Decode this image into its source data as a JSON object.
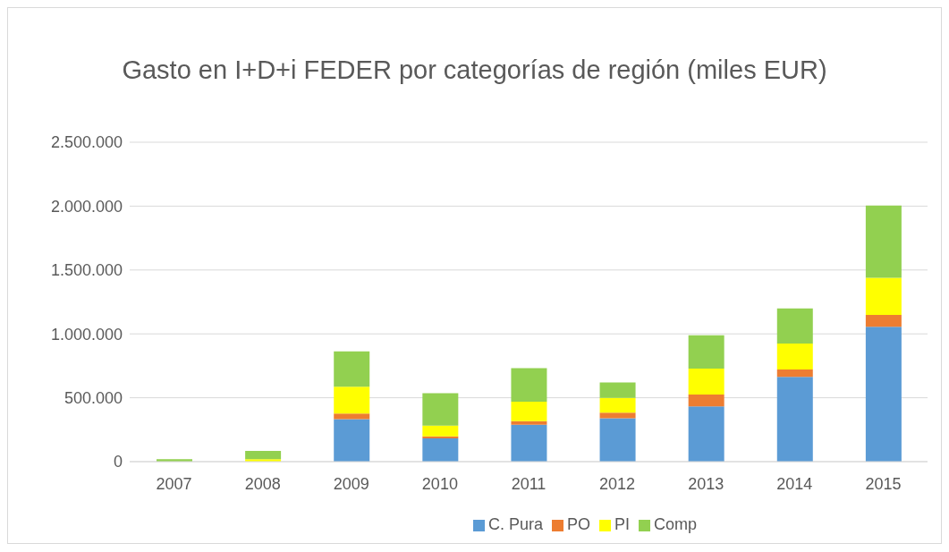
{
  "chart_data": {
    "type": "bar",
    "title": "Gasto en I+D+i FEDER por categorías de región (miles EUR)",
    "categories": [
      "2007",
      "2008",
      "2009",
      "2010",
      "2011",
      "2012",
      "2013",
      "2014",
      "2015"
    ],
    "stacked": true,
    "series": [
      {
        "name": "C. Pura",
        "color": "#5b9bd5",
        "values": [
          0,
          0,
          332000,
          182000,
          288000,
          340000,
          432000,
          664000,
          1055000
        ]
      },
      {
        "name": "PO",
        "color": "#ed7d31",
        "values": [
          0,
          0,
          44000,
          15000,
          29000,
          43000,
          94000,
          58000,
          94000
        ]
      },
      {
        "name": "PI",
        "color": "#ffff00",
        "values": [
          0,
          19000,
          211000,
          85000,
          153000,
          116000,
          203000,
          203000,
          290000
        ]
      },
      {
        "name": "Comp",
        "color": "#92d050",
        "values": [
          19000,
          65000,
          276000,
          254000,
          261000,
          121000,
          261000,
          275000,
          565000
        ]
      }
    ],
    "ylim": [
      0,
      2500000
    ],
    "yticks": [
      {
        "value": 0,
        "label": "0"
      },
      {
        "value": 500000,
        "label": "500.000"
      },
      {
        "value": 1000000,
        "label": "1.000.000"
      },
      {
        "value": 1500000,
        "label": "1.500.000"
      },
      {
        "value": 2000000,
        "label": "2.000.000"
      },
      {
        "value": 2500000,
        "label": "2.500.000"
      }
    ],
    "grid": "y",
    "legend": "bottom"
  }
}
